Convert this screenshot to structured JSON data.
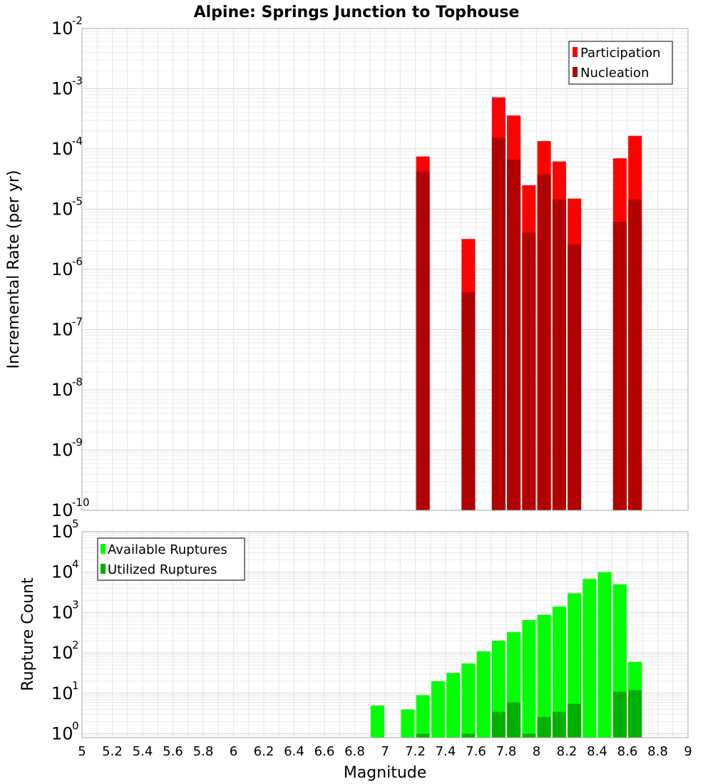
{
  "chart_data": [
    {
      "type": "bar",
      "title": "Alpine: Springs Junction to Tophouse",
      "ylabel": "Incremental Rate (per yr)",
      "xlim": [
        5,
        9
      ],
      "ylim": [
        1e-10,
        0.01
      ],
      "yscale": "log",
      "grid": true,
      "legend_position": "top-right",
      "ytick_labels": [
        {
          "base": "10",
          "exp": "-10"
        },
        {
          "base": "10",
          "exp": "-9"
        },
        {
          "base": "10",
          "exp": "-8"
        },
        {
          "base": "10",
          "exp": "-7"
        },
        {
          "base": "10",
          "exp": "-6"
        },
        {
          "base": "10",
          "exp": "-5"
        },
        {
          "base": "10",
          "exp": "-4"
        },
        {
          "base": "10",
          "exp": "-3"
        },
        {
          "base": "10",
          "exp": "-2"
        }
      ],
      "series": [
        {
          "name": "Participation",
          "color": "#ff0000",
          "x": [
            7.25,
            7.55,
            7.75,
            7.85,
            7.95,
            8.05,
            8.15,
            8.25,
            8.55,
            8.65
          ],
          "values": [
            7.5e-05,
            3.2e-06,
            0.00072,
            0.00036,
            2.5e-05,
            0.000135,
            6.2e-05,
            1.5e-05,
            7e-05,
            0.000165
          ]
        },
        {
          "name": "Nucleation",
          "color": "#b00000",
          "x": [
            7.25,
            7.55,
            7.75,
            7.85,
            7.95,
            8.05,
            8.15,
            8.25,
            8.55,
            8.65
          ],
          "values": [
            4.2e-05,
            4.2e-07,
            0.000155,
            6.7e-05,
            4.1e-06,
            3.8e-05,
            1.45e-05,
            2.6e-06,
            6.2e-06,
            1.45e-05
          ]
        }
      ]
    },
    {
      "type": "bar",
      "xlabel": "Magnitude",
      "ylabel": "Rupture Count",
      "xlim": [
        5,
        9
      ],
      "ylim": [
        0.8,
        100000.0
      ],
      "yscale": "log",
      "grid": true,
      "legend_position": "top-left",
      "xtick_labels": [
        "5",
        "5.2",
        "5.4",
        "5.6",
        "5.8",
        "6",
        "6.2",
        "6.4",
        "6.6",
        "6.8",
        "7",
        "7.2",
        "7.4",
        "7.6",
        "7.8",
        "8",
        "8.2",
        "8.4",
        "8.6",
        "8.8",
        "9"
      ],
      "ytick_labels": [
        {
          "base": "10",
          "exp": "0"
        },
        {
          "base": "10",
          "exp": "1"
        },
        {
          "base": "10",
          "exp": "2"
        },
        {
          "base": "10",
          "exp": "3"
        },
        {
          "base": "10",
          "exp": "4"
        },
        {
          "base": "10",
          "exp": "5"
        }
      ],
      "series": [
        {
          "name": "Available Ruptures",
          "color": "#00ff00",
          "x": [
            6.95,
            7.15,
            7.25,
            7.35,
            7.45,
            7.55,
            7.65,
            7.75,
            7.85,
            7.95,
            8.05,
            8.15,
            8.25,
            8.35,
            8.45,
            8.55,
            8.65
          ],
          "values": [
            5,
            4,
            9,
            20,
            32,
            55,
            110,
            200,
            330,
            650,
            880,
            1400,
            3000,
            6800,
            10000,
            5000,
            60
          ]
        },
        {
          "name": "Utilized Ruptures",
          "color": "#00b000",
          "x": [
            7.25,
            7.55,
            7.75,
            7.85,
            7.95,
            8.05,
            8.15,
            8.25,
            8.55,
            8.65
          ],
          "values": [
            1,
            1,
            3.5,
            6,
            1,
            2.6,
            3.5,
            5.5,
            11,
            12
          ]
        }
      ]
    }
  ]
}
